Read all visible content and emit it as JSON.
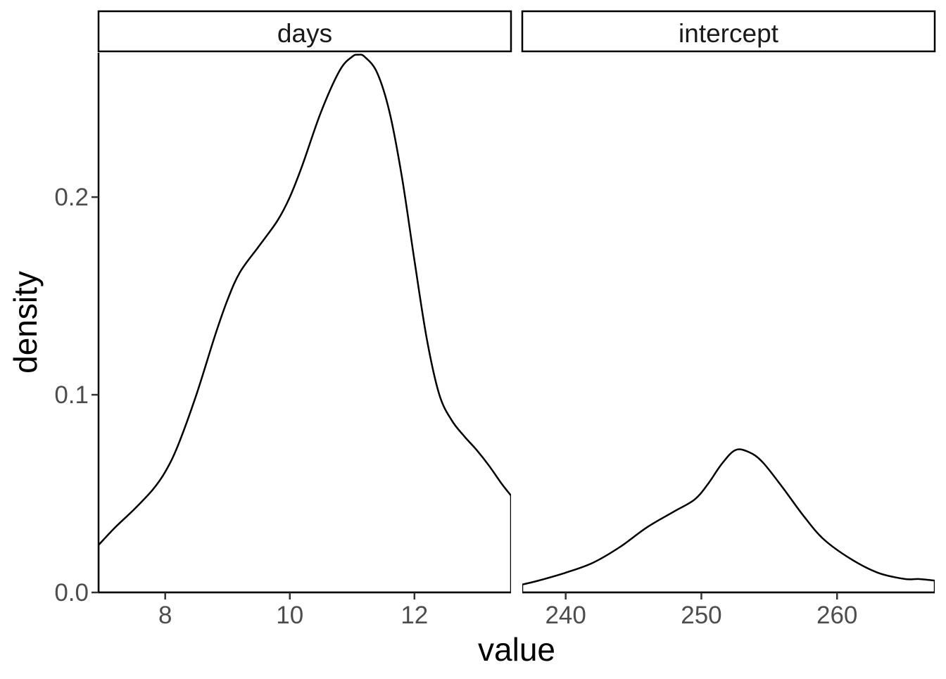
{
  "chart_data": {
    "type": "area",
    "xlabel": "value",
    "ylabel": "density",
    "ylim": [
      0,
      0.273
    ],
    "y_ticks": [
      0.0,
      0.1,
      0.2
    ],
    "y_tick_labels": [
      "0.0",
      "0.1",
      "0.2"
    ],
    "grid": false,
    "legend": "none",
    "panels": [
      {
        "strip_label": "days",
        "xlim": [
          6.93,
          13.55
        ],
        "x_ticks": [
          8,
          10,
          12
        ],
        "x_tick_labels": [
          "8",
          "10",
          "12"
        ],
        "series": [
          {
            "x": [
              6.93,
              7.2,
              7.5,
              7.8,
              8.0,
              8.2,
              8.5,
              8.8,
              9.0,
              9.2,
              9.5,
              9.8,
              10.0,
              10.2,
              10.5,
              10.8,
              11.0,
              11.1,
              11.2,
              11.4,
              11.6,
              11.8,
              12.0,
              12.2,
              12.4,
              12.6,
              12.8,
              13.0,
              13.2,
              13.4,
              13.55
            ],
            "y": [
              0.024,
              0.033,
              0.042,
              0.052,
              0.061,
              0.074,
              0.1,
              0.13,
              0.148,
              0.162,
              0.175,
              0.188,
              0.2,
              0.216,
              0.243,
              0.264,
              0.271,
              0.272,
              0.271,
              0.263,
              0.243,
              0.21,
              0.168,
              0.128,
              0.1,
              0.087,
              0.079,
              0.072,
              0.064,
              0.055,
              0.049
            ]
          }
        ]
      },
      {
        "strip_label": "intercept",
        "xlim": [
          236.8,
          267.2
        ],
        "x_ticks": [
          240,
          250,
          260
        ],
        "x_tick_labels": [
          "240",
          "250",
          "260"
        ],
        "series": [
          {
            "x": [
              236.8,
              238,
              240,
              242,
              244,
              246,
              248,
              249.5,
              250.5,
              251.5,
              252.5,
              253.5,
              254.5,
              256,
              257.5,
              259,
              261,
              263,
              265,
              266,
              267.2
            ],
            "y": [
              0.004,
              0.006,
              0.01,
              0.015,
              0.023,
              0.033,
              0.041,
              0.047,
              0.055,
              0.065,
              0.072,
              0.071,
              0.066,
              0.053,
              0.039,
              0.027,
              0.017,
              0.01,
              0.0068,
              0.0068,
              0.006
            ]
          }
        ]
      }
    ]
  }
}
